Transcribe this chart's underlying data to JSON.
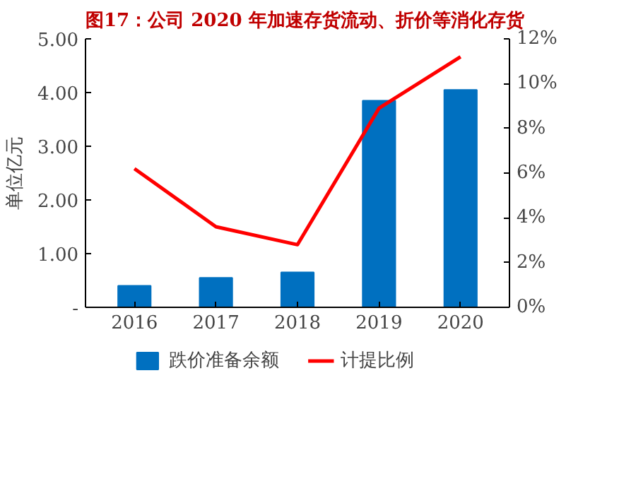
{
  "chart_data": {
    "type": "bar",
    "title": "图17：公司 2020 年加速存货流动、折价等消化存货",
    "categories": [
      "2016",
      "2017",
      "2018",
      "2019",
      "2020"
    ],
    "ylabel": "单位亿元",
    "series": [
      {
        "name": "跌价准备余额",
        "color": "#0070c0",
        "values": [
          0.4,
          0.55,
          0.65,
          3.85,
          4.05
        ]
      },
      {
        "name": "计提比例",
        "type": "line",
        "axis": "y2",
        "color": "#ff0000",
        "values": [
          6.2,
          3.6,
          2.8,
          8.9,
          11.2
        ]
      }
    ],
    "ylim": [
      0,
      5
    ],
    "yticks": [
      {
        "value": 0,
        "label": "-"
      },
      {
        "value": 1,
        "label": "1.00"
      },
      {
        "value": 2,
        "label": "2.00"
      },
      {
        "value": 3,
        "label": "3.00"
      },
      {
        "value": 4,
        "label": "4.00"
      },
      {
        "value": 5,
        "label": "5.00"
      }
    ],
    "y2lim": [
      0,
      12
    ],
    "y2ticks": [
      {
        "value": 0,
        "label": "0%"
      },
      {
        "value": 2,
        "label": "2%"
      },
      {
        "value": 4,
        "label": "4%"
      },
      {
        "value": 6,
        "label": "6%"
      },
      {
        "value": 8,
        "label": "8%"
      },
      {
        "value": 10,
        "label": "10%"
      },
      {
        "value": 12,
        "label": "12%"
      }
    ],
    "grid": false,
    "legend": "bottom",
    "marker": "none",
    "line_style": "solid"
  }
}
